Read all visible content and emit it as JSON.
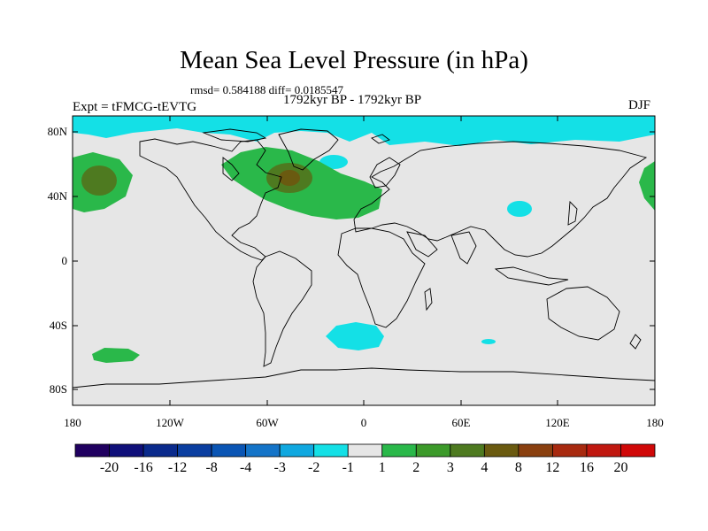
{
  "figure": {
    "title": "Mean Sea Level Pressure (in hPa)",
    "stats": "rmsd= 0.584188 diff= 0.0185547",
    "experiment": "Expt = tFMCG-tEVTG",
    "period": "1792kyr BP - 1792kyr BP",
    "season": "DJF"
  },
  "map": {
    "lat_labels": [
      "80N",
      "40N",
      "0",
      "40S",
      "80S"
    ],
    "lon_labels": [
      "180",
      "120W",
      "60W",
      "0",
      "60E",
      "120E",
      "180"
    ],
    "lat_values": [
      80,
      40,
      0,
      -40,
      -80
    ],
    "lon_values": [
      -180,
      -120,
      -60,
      0,
      60,
      120,
      180
    ],
    "background_color": "#e6e6e6",
    "coastline_color": "#000000"
  },
  "colorbar": {
    "labels": [
      "-20",
      "-16",
      "-12",
      "-8",
      "-4",
      "-3",
      "-2",
      "-1",
      "1",
      "2",
      "3",
      "4",
      "8",
      "12",
      "16",
      "20"
    ],
    "colors": [
      "#200060",
      "#10107a",
      "#0a2a8c",
      "#0a3ea0",
      "#0a55b4",
      "#1474c8",
      "#10a8e0",
      "#14e0e6",
      "#e6e6e6",
      "#2ab84a",
      "#3c9a2a",
      "#4e7a20",
      "#6a5a10",
      "#8a4010",
      "#a82a10",
      "#c01810",
      "#d00808"
    ]
  },
  "anomalies": [
    {
      "name": "north-pacific-high",
      "color": "#2ab84a"
    },
    {
      "name": "north-pacific-core",
      "color": "#4e7a20"
    },
    {
      "name": "north-atlantic-high",
      "color": "#2ab84a"
    },
    {
      "name": "north-atlantic-core",
      "color": "#6a5a10"
    },
    {
      "name": "arctic-low",
      "color": "#14e0e6"
    },
    {
      "name": "central-asia-low",
      "color": "#14e0e6"
    },
    {
      "name": "south-atlantic-low",
      "color": "#14e0e6"
    },
    {
      "name": "south-pacific-high",
      "color": "#2ab84a"
    }
  ]
}
